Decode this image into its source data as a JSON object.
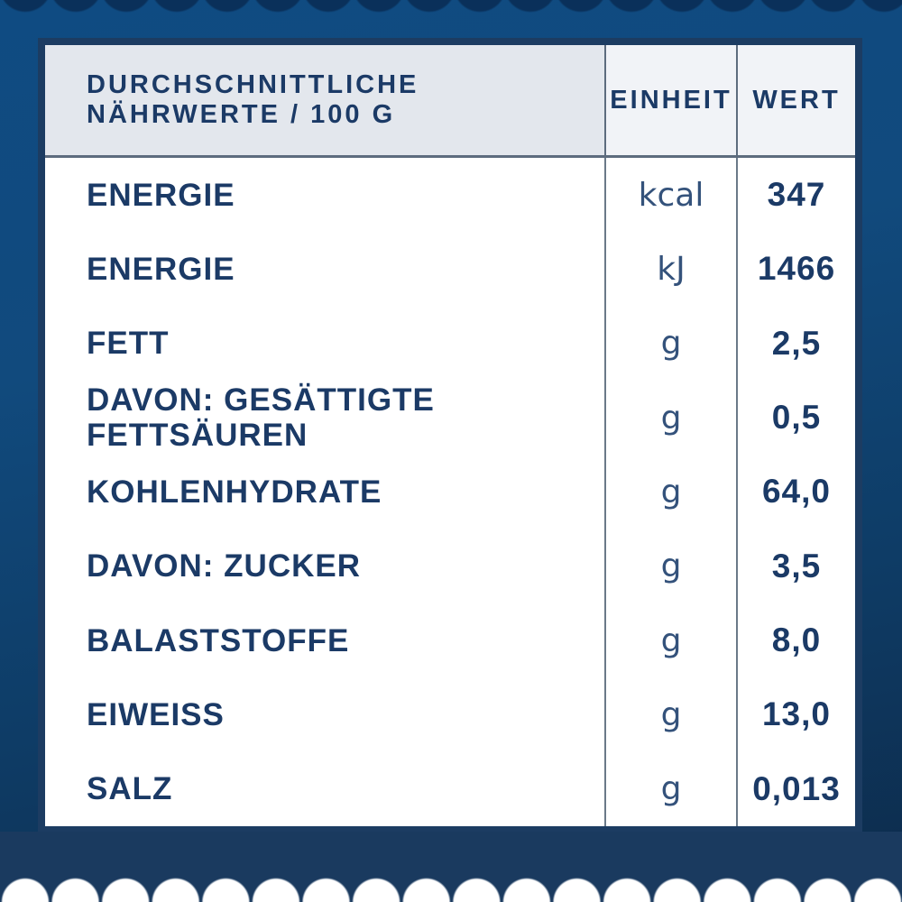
{
  "page": {
    "background_top_color": "#104B80",
    "background_bottom_color": "#0D2B4B",
    "frame_border_color": "#1C3C62",
    "text_color": "#1B3A66",
    "header_bg_left": "#E3E7ED",
    "header_bg_right": "#F1F3F7",
    "scallop_band_color": "#1A3A5F"
  },
  "table": {
    "header": {
      "col_nutrient": "DURCHSCHNITTLICHE NÄHRWERTE / 100 G",
      "col_unit": "EINHEIT",
      "col_value": "WERT"
    },
    "rows": [
      {
        "label": "ENERGIE",
        "unit": "kcal",
        "value": "347"
      },
      {
        "label": "ENERGIE",
        "unit": "kJ",
        "value": "1466"
      },
      {
        "label": "FETT",
        "unit": "g",
        "value": "2,5"
      },
      {
        "label": "DAVON: GESÄTTIGTE\nFETTSÄUREN",
        "unit": "g",
        "value": "0,5"
      },
      {
        "label": "KOHLENHYDRATE",
        "unit": "g",
        "value": "64,0"
      },
      {
        "label": "DAVON: ZUCKER",
        "unit": "g",
        "value": "3,5"
      },
      {
        "label": "BALASTSTOFFE",
        "unit": "g",
        "value": "8,0"
      },
      {
        "label": "EIWEISS",
        "unit": "g",
        "value": "13,0"
      },
      {
        "label": "SALZ",
        "unit": "g",
        "value": "0,013"
      }
    ]
  }
}
